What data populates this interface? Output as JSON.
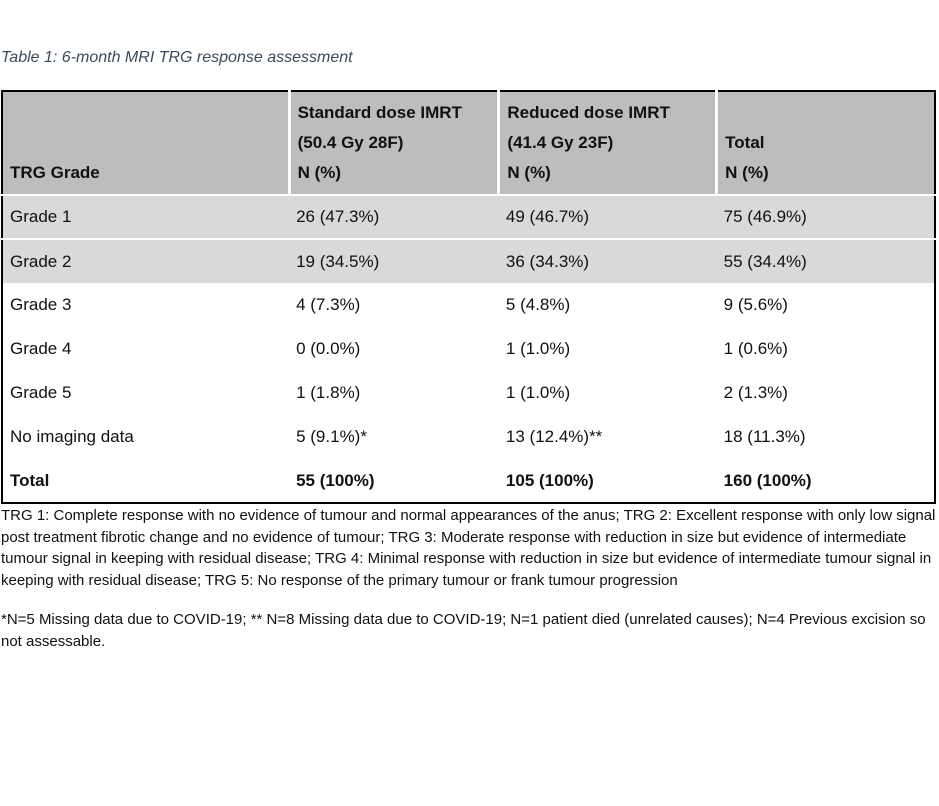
{
  "caption": "Table 1: 6-month MRI TRG response assessment",
  "table": {
    "headers": [
      {
        "lines": [
          "TRG Grade"
        ]
      },
      {
        "lines": [
          "Standard dose IMRT",
          "(50.4 Gy 28F)",
          "N (%)"
        ]
      },
      {
        "lines": [
          "Reduced dose IMRT",
          "(41.4 Gy 23F)",
          "N (%)"
        ]
      },
      {
        "lines": [
          "Total",
          "N (%)"
        ]
      }
    ],
    "rows": [
      {
        "cells": [
          "Grade 1",
          "26 (47.3%)",
          "49 (46.7%)",
          "75 (46.9%)"
        ]
      },
      {
        "cells": [
          "Grade 2",
          "19 (34.5%)",
          "36 (34.3%)",
          "55 (34.4%)"
        ]
      },
      {
        "cells": [
          "Grade 3",
          "4 (7.3%)",
          "5 (4.8%)",
          "9 (5.6%)"
        ]
      },
      {
        "cells": [
          "Grade 4",
          "0 (0.0%)",
          "1 (1.0%)",
          "1 (0.6%)"
        ]
      },
      {
        "cells": [
          "Grade 5",
          "1 (1.8%)",
          "1 (1.0%)",
          "2 (1.3%)"
        ]
      },
      {
        "cells": [
          "No imaging data",
          "5 (9.1%)*",
          "13 (12.4%)**",
          "18 (11.3%)"
        ]
      },
      {
        "cells": [
          "Total",
          "55 (100%)",
          "105 (100%)",
          "160 (100%)"
        ]
      }
    ]
  },
  "footnotes": {
    "trg_definitions": "TRG 1: Complete response with no evidence of tumour and normal appearances of the anus; TRG 2: Excellent response with only low signal post treatment fibrotic change and no evidence of tumour; TRG 3: Moderate response with reduction in size but evidence of intermediate tumour signal in keeping with residual disease; TRG 4: Minimal response with reduction in size but evidence of intermediate tumour signal in keeping with residual disease; TRG 5: No response of the primary tumour or frank tumour progression",
    "missing_data": "*N=5 Missing data due to COVID-19; ** N=8 Missing data due to COVID-19; N=1 patient died (unrelated causes); N=4 Previous excision so not assessable."
  }
}
